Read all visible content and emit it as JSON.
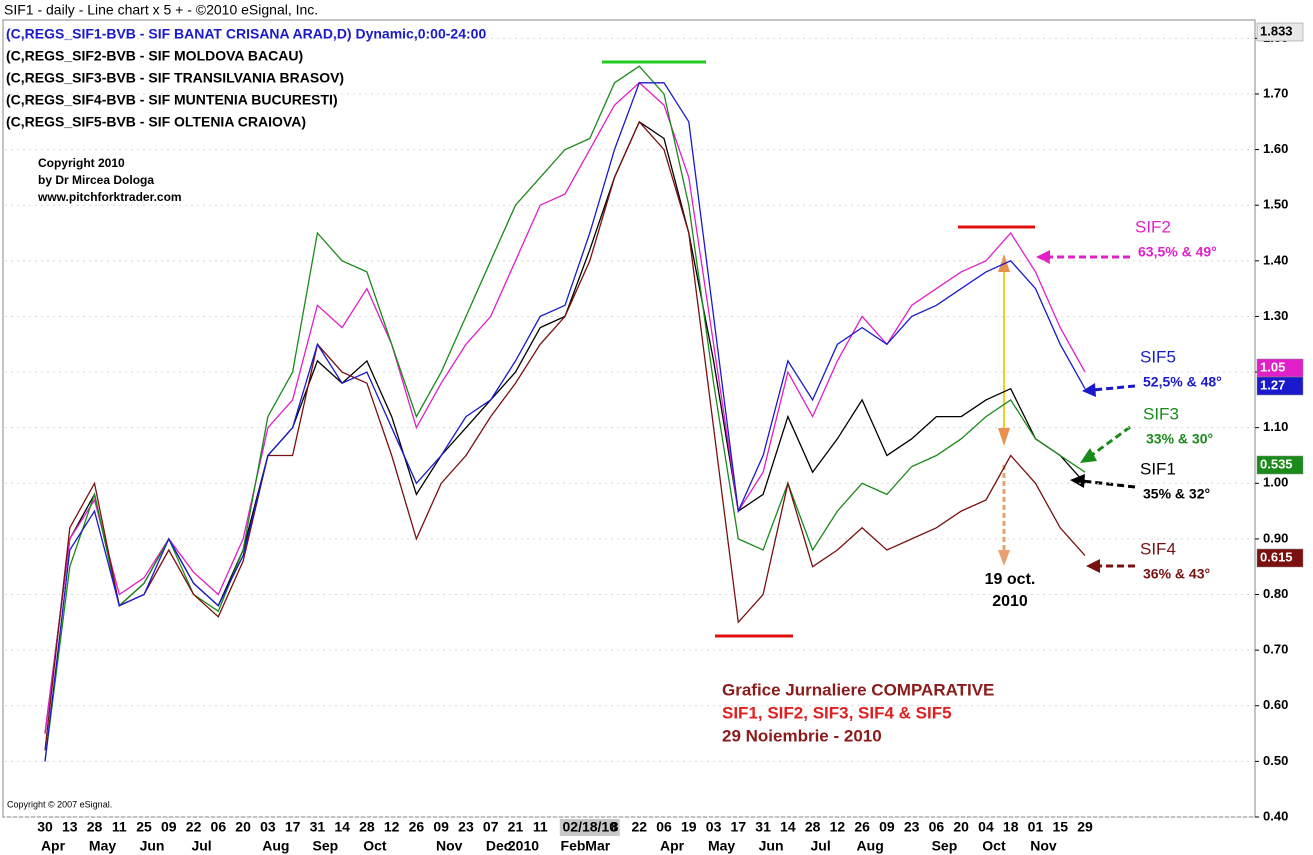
{
  "header": "SIF1 - daily - Line chart  x 5  + - ©2010 eSignal, Inc.",
  "chart_data": {
    "type": "line",
    "legend_lines": [
      {
        "text": "(C,REGS_SIF1-BVB - SIF BANAT CRISANA ARAD,D) Dynamic,0:00-24:00",
        "color": "#1a1acc"
      },
      {
        "text": "(C,REGS_SIF2-BVB - SIF MOLDOVA BACAU)",
        "color": "#000000"
      },
      {
        "text": "(C,REGS_SIF3-BVB - SIF TRANSILVANIA BRASOV)",
        "color": "#000000"
      },
      {
        "text": "(C,REGS_SIF4-BVB - SIF MUNTENIA BUCURESTI)",
        "color": "#000000"
      },
      {
        "text": "(C,REGS_SIF5-BVB - SIF OLTENIA CRAIOVA)",
        "color": "#000000"
      }
    ],
    "copyright": [
      "Copyright 2010",
      "by Dr Mircea Dologa",
      "www.pitchforktrader.com"
    ],
    "footer_copyright": "Copyright © 2007 eSignal.",
    "categories": [
      "30",
      "13",
      "28",
      "11",
      "25",
      "09",
      "22",
      "06",
      "20",
      "03",
      "17",
      "31",
      "14",
      "28",
      "12",
      "26",
      "09",
      "23",
      "07",
      "21",
      "11",
      "2",
      "02/18/10",
      "8",
      "22",
      "06",
      "19",
      "03",
      "17",
      "31",
      "14",
      "28",
      "12",
      "26",
      "09",
      "23",
      "06",
      "20",
      "04",
      "18",
      "01",
      "15",
      "29"
    ],
    "month_labels": [
      "Apr",
      null,
      "May",
      null,
      "Jun",
      null,
      "Jul",
      null,
      null,
      "Aug",
      null,
      "Sep",
      null,
      "Oct",
      null,
      null,
      "Nov",
      null,
      "Dec",
      "2010",
      null,
      "Feb",
      "Mar",
      null,
      null,
      "Apr",
      null,
      "May",
      null,
      "Jun",
      null,
      "Jul",
      null,
      "Aug",
      null,
      null,
      "Sep",
      null,
      "Oct",
      null,
      "Nov",
      null,
      null
    ],
    "series": [
      {
        "name": "SIF1",
        "note": "35% & 32°",
        "color": "#000000",
        "values": [
          0.55,
          0.9,
          0.98,
          0.78,
          0.82,
          0.9,
          0.82,
          0.78,
          0.88,
          1.05,
          1.1,
          1.22,
          1.18,
          1.22,
          1.12,
          0.98,
          1.05,
          1.1,
          1.15,
          1.2,
          1.28,
          1.3,
          1.42,
          1.55,
          1.65,
          1.62,
          1.45,
          1.22,
          0.95,
          0.98,
          1.12,
          1.02,
          1.08,
          1.15,
          1.05,
          1.08,
          1.12,
          1.12,
          1.15,
          1.17,
          1.08,
          1.05,
          1.0
        ]
      },
      {
        "name": "SIF2",
        "note": "63,5% & 49°",
        "color": "#e020c8",
        "values": [
          0.55,
          0.9,
          0.97,
          0.8,
          0.83,
          0.9,
          0.84,
          0.8,
          0.9,
          1.1,
          1.15,
          1.32,
          1.28,
          1.35,
          1.25,
          1.1,
          1.18,
          1.25,
          1.3,
          1.4,
          1.5,
          1.52,
          1.6,
          1.68,
          1.72,
          1.68,
          1.55,
          1.25,
          0.95,
          1.02,
          1.2,
          1.12,
          1.22,
          1.3,
          1.25,
          1.32,
          1.35,
          1.38,
          1.4,
          1.45,
          1.38,
          1.28,
          1.2
        ]
      },
      {
        "name": "SIF3",
        "note": "33% & 30°",
        "color": "#1a8a1a",
        "values": [
          0.5,
          0.85,
          0.98,
          0.78,
          0.82,
          0.9,
          0.8,
          0.77,
          0.88,
          1.12,
          1.2,
          1.45,
          1.4,
          1.38,
          1.25,
          1.12,
          1.2,
          1.3,
          1.4,
          1.5,
          1.55,
          1.6,
          1.62,
          1.72,
          1.75,
          1.7,
          1.5,
          1.18,
          0.9,
          0.88,
          1.0,
          0.88,
          0.95,
          1.0,
          0.98,
          1.03,
          1.05,
          1.08,
          1.12,
          1.15,
          1.08,
          1.05,
          1.02
        ]
      },
      {
        "name": "SIF4",
        "note": "36% & 43°",
        "color": "#7a1010",
        "values": [
          0.52,
          0.92,
          1.0,
          0.78,
          0.8,
          0.88,
          0.8,
          0.76,
          0.86,
          1.05,
          1.05,
          1.25,
          1.2,
          1.18,
          1.05,
          0.9,
          1.0,
          1.05,
          1.12,
          1.18,
          1.25,
          1.3,
          1.4,
          1.55,
          1.65,
          1.6,
          1.45,
          1.1,
          0.75,
          0.8,
          1.0,
          0.85,
          0.88,
          0.92,
          0.88,
          0.9,
          0.92,
          0.95,
          0.97,
          1.05,
          1.0,
          0.92,
          0.87
        ]
      },
      {
        "name": "SIF5",
        "note": "52,5% & 48°",
        "color": "#1a1acc",
        "values": [
          0.5,
          0.88,
          0.95,
          0.78,
          0.8,
          0.9,
          0.82,
          0.78,
          0.87,
          1.05,
          1.1,
          1.25,
          1.18,
          1.2,
          1.1,
          1.0,
          1.05,
          1.12,
          1.15,
          1.22,
          1.3,
          1.32,
          1.45,
          1.6,
          1.72,
          1.72,
          1.65,
          1.3,
          0.95,
          1.05,
          1.22,
          1.15,
          1.25,
          1.28,
          1.25,
          1.3,
          1.32,
          1.35,
          1.38,
          1.4,
          1.35,
          1.25,
          1.17
        ]
      }
    ],
    "ylim": [
      0.4,
      1.833
    ],
    "yticks": [
      {
        "value": 0.4,
        "label": "0.40"
      },
      {
        "value": 0.5,
        "label": "0.50"
      },
      {
        "value": 0.6,
        "label": "0.60"
      },
      {
        "value": 0.7,
        "label": "0.70"
      },
      {
        "value": 0.8,
        "label": "0.80"
      },
      {
        "value": 0.9,
        "label": "0.90"
      },
      {
        "value": 1.0,
        "label": "1.00"
      },
      {
        "value": 1.1,
        "label": "1.10"
      },
      {
        "value": 1.2,
        "label": "1.20"
      },
      {
        "value": 1.3,
        "label": "1.30"
      },
      {
        "value": 1.4,
        "label": "1.40"
      },
      {
        "value": 1.5,
        "label": "1.50"
      },
      {
        "value": 1.6,
        "label": "1.60"
      },
      {
        "value": 1.7,
        "label": "1.70"
      },
      {
        "value": 1.8,
        "label": "1.80"
      }
    ],
    "grid": true,
    "price_tags": [
      {
        "label": "1.833",
        "color": "#e8e8e8",
        "text_color": "#000000"
      },
      {
        "label": "1.05",
        "color": "#e020c8",
        "text_color": "#ffffff"
      },
      {
        "label": "1.27",
        "color": "#1a1acc",
        "text_color": "#ffffff"
      },
      {
        "label": "0.535",
        "color": "#1a8a1a",
        "text_color": "#ffffff"
      },
      {
        "label": "0.615",
        "color": "#7a1010",
        "text_color": "#ffffff"
      }
    ],
    "date_note": [
      "19 oct.",
      "2010"
    ],
    "caption": [
      "Grafice Jurnaliere COMPARATIVE",
      "SIF1, SIF2, SIF3, SIF4 & SIF5",
      "29 Noiembrie -  2010"
    ]
  }
}
